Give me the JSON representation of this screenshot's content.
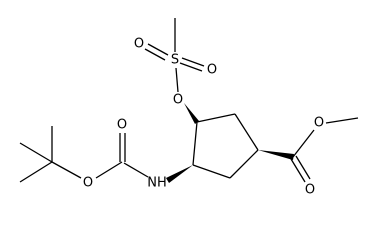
{
  "atoms": [
    {
      "label": "S"
    },
    {
      "label": "O"
    },
    {
      "label": "O"
    },
    {
      "label": "O"
    },
    {
      "label": "O"
    },
    {
      "label": "O"
    },
    {
      "label": "NH"
    },
    {
      "label": "O"
    },
    {
      "label": "O"
    }
  ]
}
